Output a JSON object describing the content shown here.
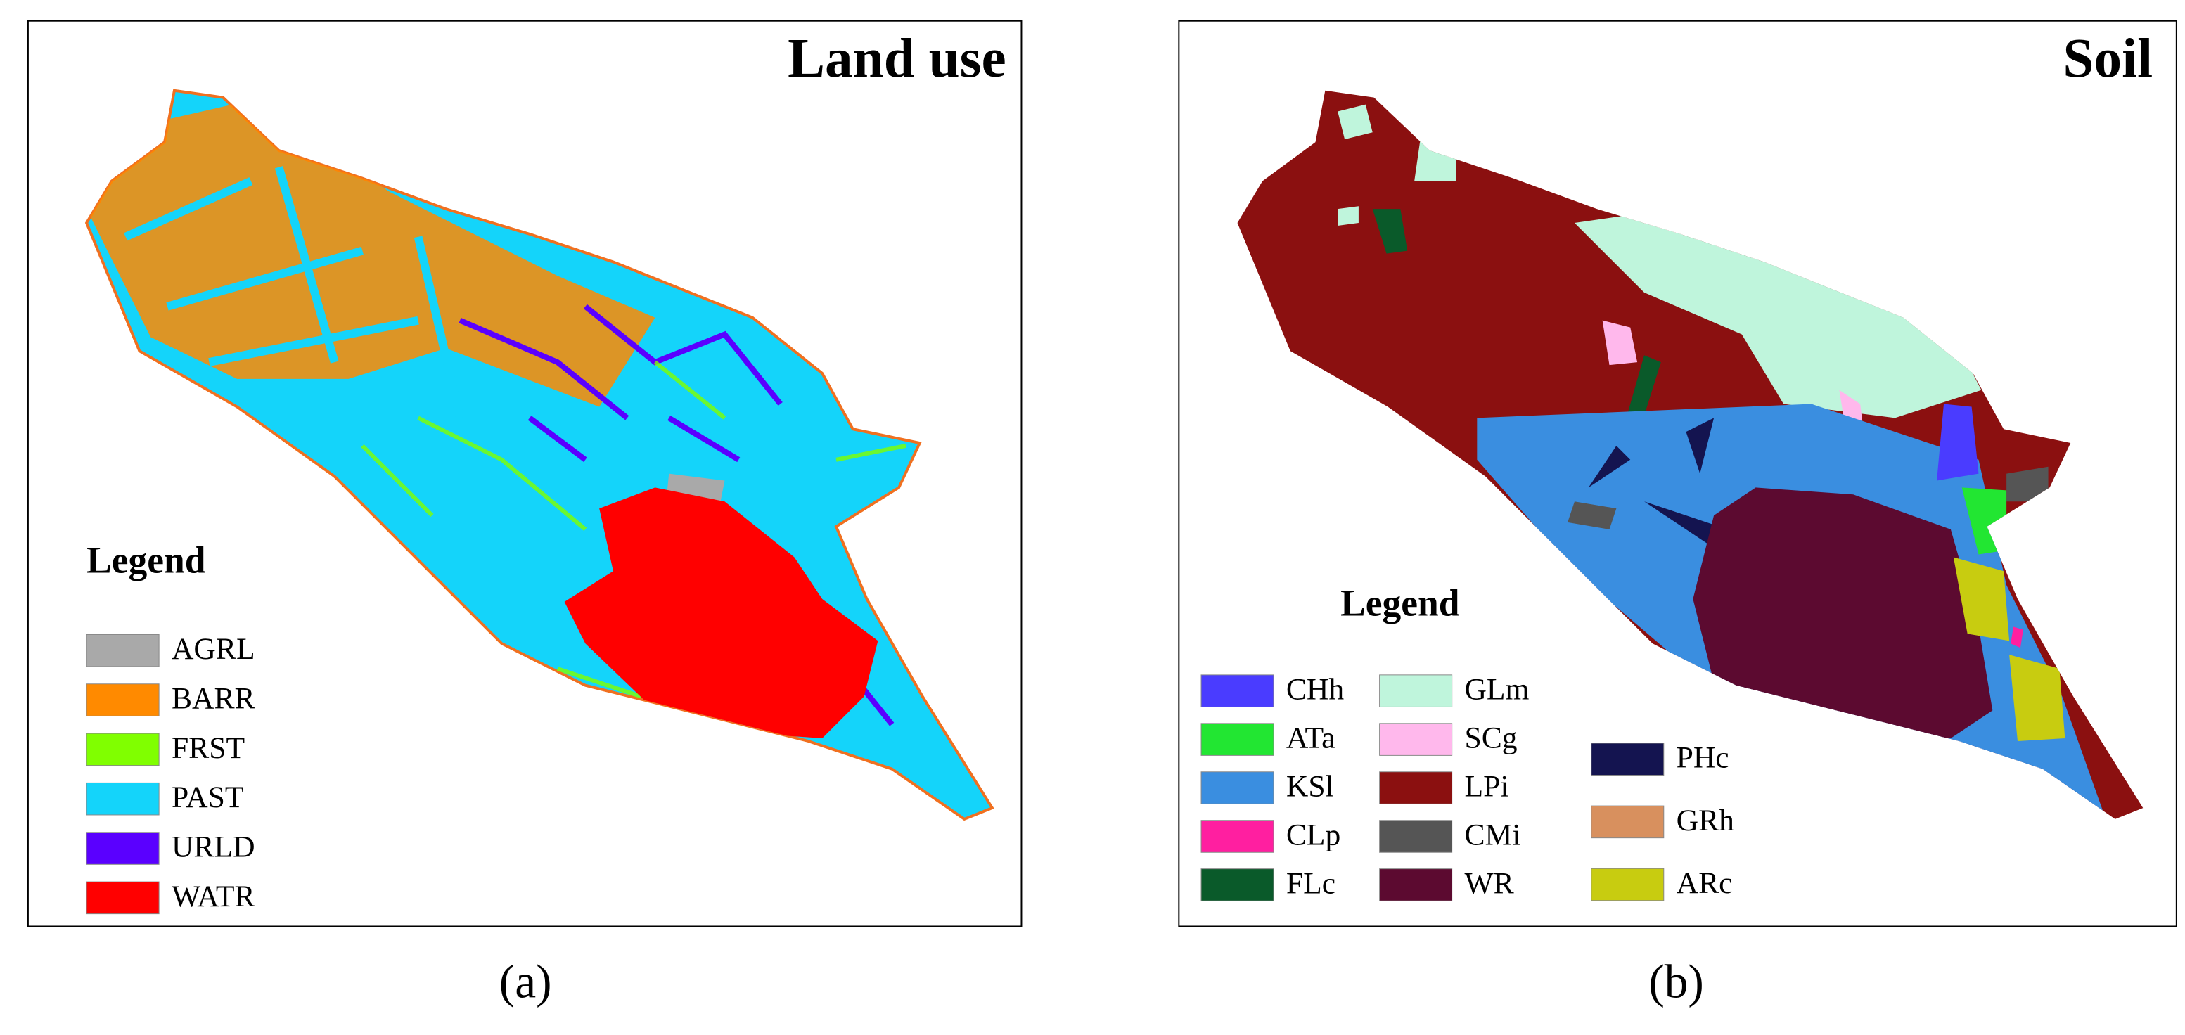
{
  "panels": [
    {
      "title": "Land use",
      "legend_title": "Legend",
      "caption": "(a)",
      "legend_columns": [
        [
          {
            "label": "AGRL",
            "color": "#a9a9a9"
          },
          {
            "label": "BARR",
            "color": "#ff8a00"
          },
          {
            "label": "FRST",
            "color": "#80ff00"
          },
          {
            "label": "PAST",
            "color": "#14d4fa"
          },
          {
            "label": "URLD",
            "color": "#5a00ff"
          },
          {
            "label": "WATR",
            "color": "#ff0000"
          }
        ]
      ]
    },
    {
      "title": "Soil",
      "legend_title": "Legend",
      "caption": "(b)",
      "legend_columns": [
        [
          {
            "label": "CHh",
            "color": "#4a3cff"
          },
          {
            "label": "ATa",
            "color": "#22e632"
          },
          {
            "label": "KSl",
            "color": "#3a8ee0"
          },
          {
            "label": "CLp",
            "color": "#ff1fa0"
          },
          {
            "label": "FLc",
            "color": "#0a5a2a"
          }
        ],
        [
          {
            "label": "GLm",
            "color": "#bff5dc"
          },
          {
            "label": "SCg",
            "color": "#ffb8ec"
          },
          {
            "label": "LPi",
            "color": "#8b1010"
          },
          {
            "label": "CMi",
            "color": "#555555"
          },
          {
            "label": "WR",
            "color": "#5c0a30"
          }
        ],
        [
          {
            "label": "PHc",
            "color": "#141450"
          },
          {
            "label": "GRh",
            "color": "#d8905e"
          },
          {
            "label": "ARc",
            "color": "#c8cc10"
          }
        ]
      ]
    }
  ]
}
